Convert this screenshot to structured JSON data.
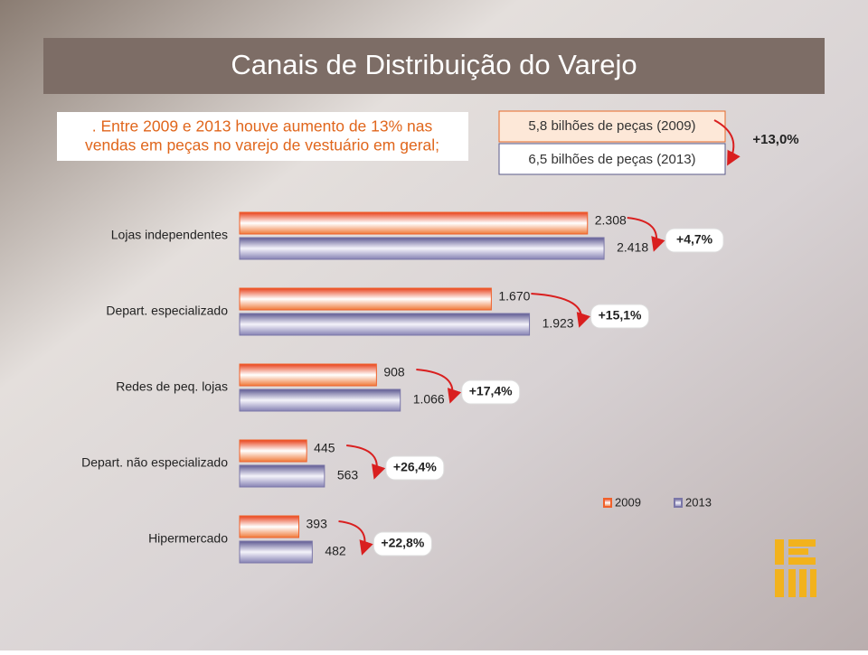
{
  "chart_data": {
    "type": "bar",
    "orientation": "horizontal",
    "title": "Canais de Distribuição do Varejo",
    "bullet_lines": [
      ". Entre 2009 e 2013 houve aumento de 13% nas",
      "vendas em peças no varejo de vestuário em geral;"
    ],
    "summary_boxes": [
      "5,8 bilhões de peças (2009)",
      "6,5 bilhões de peças (2013)"
    ],
    "summary_growth": "+13,0%",
    "categories": [
      "Lojas independentes",
      "Depart. especializado",
      "Redes de peq. lojas",
      "Depart. não especializado",
      "Hipermercado"
    ],
    "series": [
      {
        "name": "2009",
        "color": "#f0602a",
        "values": [
          2308,
          1670,
          908,
          445,
          393
        ],
        "value_labels": [
          "2.308",
          "1.670",
          "908",
          "445",
          "393"
        ]
      },
      {
        "name": "2013",
        "color": "#7a76a8",
        "values": [
          2418,
          1923,
          1066,
          563,
          482
        ],
        "value_labels": [
          "2.418",
          "1.923",
          "1.066",
          "563",
          "482"
        ]
      }
    ],
    "growth_labels": [
      "+4,7%",
      "+15,1%",
      "+17,4%",
      "+26,4%",
      "+22,8%"
    ]
  }
}
